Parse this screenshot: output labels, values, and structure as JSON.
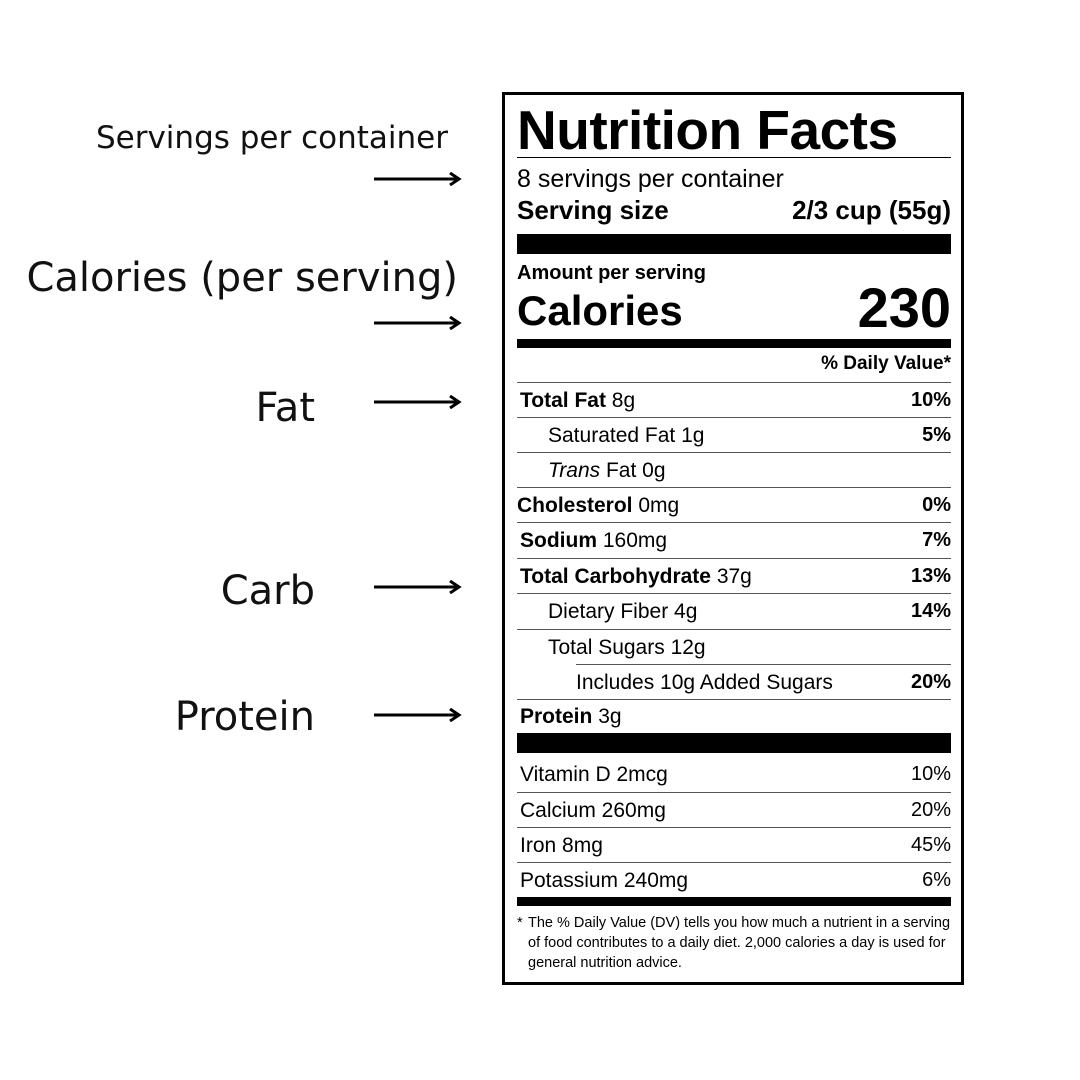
{
  "annotations": {
    "servings": "Servings per container",
    "calories": "Calories (per serving)",
    "fat": "Fat",
    "carb": "Carb",
    "protein": "Protein"
  },
  "label": {
    "title": "Nutrition Facts",
    "servings_per_container": "8 servings per container",
    "serving_size_label": "Serving size",
    "serving_size_value": "2/3 cup (55g)",
    "amount_per_serving": "Amount per serving",
    "calories_label": "Calories",
    "calories_value": "230",
    "dv_header": "% Daily Value*",
    "rows": [
      {
        "name": "Total Fat",
        "amount": "8g",
        "dv": "10%"
      },
      {
        "name": "Saturated Fat",
        "amount": "1g",
        "dv": "5%"
      },
      {
        "name_italic": "Trans",
        "name": "Fat",
        "amount": "0g",
        "dv": ""
      },
      {
        "name": "Cholesterol",
        "amount": "0mg",
        "dv": "0%"
      },
      {
        "name": "Sodium",
        "amount": "160mg",
        "dv": "7%"
      },
      {
        "name": "Total Carbohydrate",
        "amount": "37g",
        "dv": "13%"
      },
      {
        "name": "Dietary Fiber",
        "amount": "4g",
        "dv": "14%"
      },
      {
        "name": "Total Sugars",
        "amount": "12g",
        "dv": ""
      },
      {
        "name": "Includes 10g Added Sugars",
        "amount": "",
        "dv": "20%"
      },
      {
        "name": "Protein",
        "amount": "3g",
        "dv": ""
      }
    ],
    "vitamins": [
      {
        "name": "Vitamin D 2mcg",
        "dv": "10%"
      },
      {
        "name": "Calcium 260mg",
        "dv": "20%"
      },
      {
        "name": "Iron 8mg",
        "dv": "45%"
      },
      {
        "name": "Potassium 240mg",
        "dv": "6%"
      }
    ],
    "footnote_star": "*",
    "footnote": "The % Daily Value (DV) tells you how much a nutrient in a serving of food contributes to a daily diet. 2,000 calories a day is used for general nutrition advice."
  }
}
